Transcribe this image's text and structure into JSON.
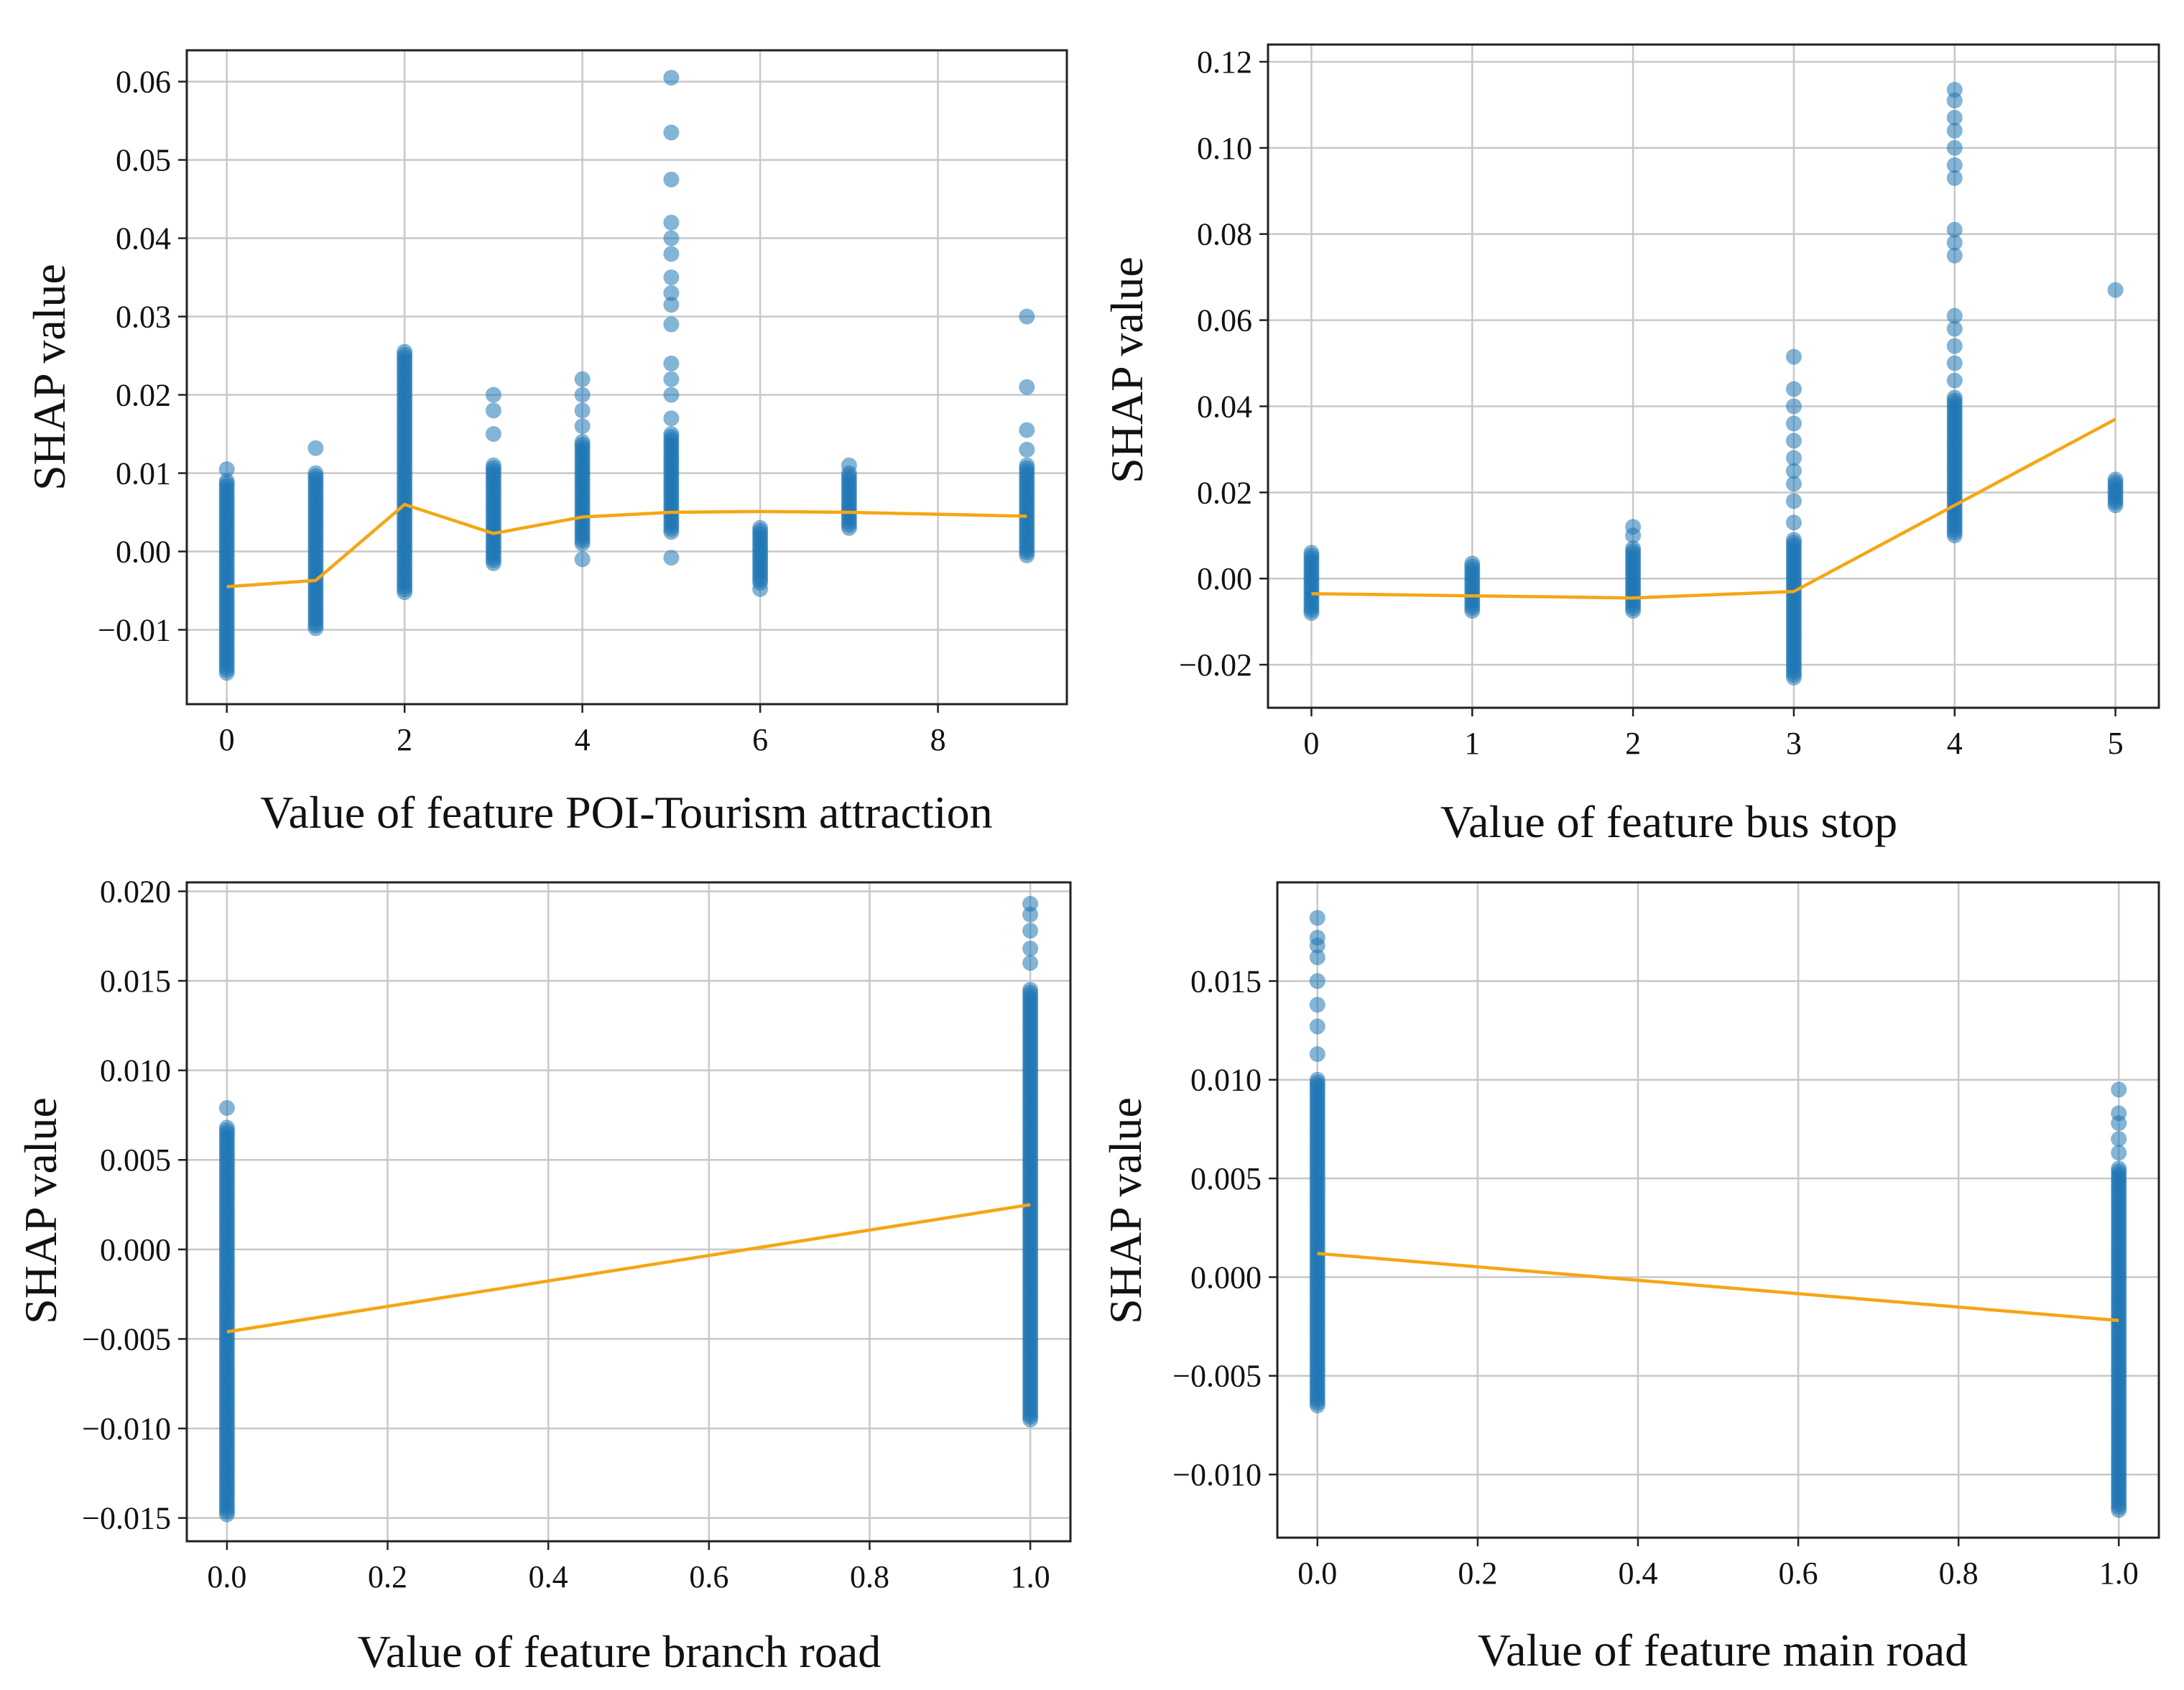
{
  "style": {
    "point_color": "#1f77b4",
    "trend_color": "#f5a614",
    "grid_color": "#c8c8c8"
  },
  "chart_data": [
    {
      "id": "poi-tourism",
      "type": "scatter",
      "title": "",
      "xlabel": "Value of feature POI-Tourism attraction",
      "ylabel": "SHAP value",
      "xlim": [
        -0.45,
        9.45
      ],
      "ylim": [
        -0.0195,
        0.064
      ],
      "xticks": [
        0,
        2,
        4,
        6,
        8
      ],
      "xtick_labels": [
        "0",
        "2",
        "4",
        "6",
        "8"
      ],
      "yticks": [
        -0.01,
        0.0,
        0.01,
        0.02,
        0.03,
        0.04,
        0.05,
        0.06
      ],
      "ytick_labels": [
        "−0.01",
        "0.00",
        "0.01",
        "0.02",
        "0.03",
        "0.04",
        "0.05",
        "0.06"
      ],
      "groups": [
        {
          "x": 0,
          "range": [
            -0.0155,
            0.009
          ],
          "outliers": [
            0.0105
          ]
        },
        {
          "x": 1,
          "range": [
            -0.0098,
            0.01
          ],
          "outliers": [
            0.0132
          ]
        },
        {
          "x": 2,
          "range": [
            -0.0052,
            0.0255
          ],
          "outliers": []
        },
        {
          "x": 3,
          "range": [
            -0.0015,
            0.011
          ],
          "outliers": [
            0.015,
            0.018,
            0.02
          ]
        },
        {
          "x": 4,
          "range": [
            0.001,
            0.014
          ],
          "outliers": [
            -0.001,
            0.016,
            0.018,
            0.02,
            0.022
          ]
        },
        {
          "x": 5,
          "range": [
            0.0025,
            0.015
          ],
          "outliers": [
            -0.0008,
            0.017,
            0.02,
            0.022,
            0.024,
            0.029,
            0.0315,
            0.033,
            0.035,
            0.038,
            0.04,
            0.042,
            0.0475,
            0.0535,
            0.0605
          ]
        },
        {
          "x": 6,
          "range": [
            -0.004,
            0.003
          ],
          "outliers": [
            -0.0048
          ]
        },
        {
          "x": 7,
          "range": [
            0.003,
            0.01
          ],
          "outliers": [
            0.011
          ]
        },
        {
          "x": 9,
          "range": [
            -0.0005,
            0.011
          ],
          "outliers": [
            0.013,
            0.0155,
            0.021,
            0.03
          ]
        }
      ],
      "trend": {
        "x": [
          0,
          1,
          2,
          3,
          4,
          5,
          6,
          7,
          9
        ],
        "y": [
          -0.0045,
          -0.0037,
          0.006,
          0.0023,
          0.0044,
          0.005,
          0.0051,
          0.005,
          0.0045
        ]
      }
    },
    {
      "id": "bus-stop",
      "type": "scatter",
      "title": "",
      "xlabel": "Value of feature bus stop",
      "ylabel": "SHAP value",
      "xlim": [
        -0.27,
        5.27
      ],
      "ylim": [
        -0.03,
        0.124
      ],
      "xticks": [
        0,
        1,
        2,
        3,
        4,
        5
      ],
      "xtick_labels": [
        "0",
        "1",
        "2",
        "3",
        "4",
        "5"
      ],
      "yticks": [
        -0.02,
        0.0,
        0.02,
        0.04,
        0.06,
        0.08,
        0.1,
        0.12
      ],
      "ytick_labels": [
        "−0.02",
        "0.00",
        "0.02",
        "0.04",
        "0.06",
        "0.08",
        "0.10",
        "0.12"
      ],
      "groups": [
        {
          "x": 0,
          "range": [
            -0.008,
            0.006
          ],
          "outliers": []
        },
        {
          "x": 1,
          "range": [
            -0.0075,
            0.0035
          ],
          "outliers": []
        },
        {
          "x": 2,
          "range": [
            -0.0075,
            0.007
          ],
          "outliers": [
            0.01,
            0.012
          ]
        },
        {
          "x": 3,
          "range": [
            -0.023,
            0.009
          ],
          "outliers": [
            0.013,
            0.018,
            0.022,
            0.025,
            0.028,
            0.032,
            0.036,
            0.04,
            0.044,
            0.0515
          ]
        },
        {
          "x": 4,
          "range": [
            0.01,
            0.042
          ],
          "outliers": [
            0.046,
            0.05,
            0.054,
            0.058,
            0.061,
            0.075,
            0.078,
            0.081,
            0.093,
            0.096,
            0.1,
            0.104,
            0.107,
            0.111,
            0.1135
          ]
        },
        {
          "x": 5,
          "range": [
            0.017,
            0.023
          ],
          "outliers": [
            0.067
          ]
        }
      ],
      "trend": {
        "x": [
          0,
          1,
          2,
          3,
          4,
          5
        ],
        "y": [
          -0.0035,
          -0.004,
          -0.0045,
          -0.003,
          0.017,
          0.037
        ]
      }
    },
    {
      "id": "branch-road",
      "type": "scatter",
      "title": "",
      "xlabel": "Value of feature branch road",
      "ylabel": "SHAP value",
      "xlim": [
        -0.05,
        1.05
      ],
      "ylim": [
        -0.0163,
        0.0205
      ],
      "xticks": [
        0.0,
        0.2,
        0.4,
        0.6,
        0.8,
        1.0
      ],
      "xtick_labels": [
        "0.0",
        "0.2",
        "0.4",
        "0.6",
        "0.8",
        "1.0"
      ],
      "yticks": [
        -0.015,
        -0.01,
        -0.005,
        0.0,
        0.005,
        0.01,
        0.015,
        0.02
      ],
      "ytick_labels": [
        "−0.015",
        "−0.010",
        "−0.005",
        "0.000",
        "0.005",
        "0.010",
        "0.015",
        "0.020"
      ],
      "groups": [
        {
          "x": 0,
          "range": [
            -0.0148,
            0.0068
          ],
          "outliers": [
            0.0079
          ]
        },
        {
          "x": 1,
          "range": [
            -0.0095,
            0.0145
          ],
          "outliers": [
            0.016,
            0.0168,
            0.0178,
            0.0187,
            0.0193
          ]
        }
      ],
      "trend": {
        "x": [
          0,
          1
        ],
        "y": [
          -0.0046,
          0.0025
        ]
      }
    },
    {
      "id": "main-road",
      "type": "scatter",
      "title": "",
      "xlabel": "Value of feature main road",
      "ylabel": "SHAP value",
      "xlim": [
        -0.05,
        1.05
      ],
      "ylim": [
        -0.0132,
        0.02
      ],
      "xticks": [
        0.0,
        0.2,
        0.4,
        0.6,
        0.8,
        1.0
      ],
      "xtick_labels": [
        "0.0",
        "0.2",
        "0.4",
        "0.6",
        "0.8",
        "1.0"
      ],
      "yticks": [
        -0.01,
        -0.005,
        0.0,
        0.005,
        0.01,
        0.015
      ],
      "ytick_labels": [
        "−0.010",
        "−0.005",
        "0.000",
        "0.005",
        "0.010",
        "0.015"
      ],
      "groups": [
        {
          "x": 0,
          "range": [
            -0.0065,
            0.01
          ],
          "outliers": [
            0.0113,
            0.0127,
            0.0138,
            0.015,
            0.0162,
            0.0168,
            0.0172,
            0.0182
          ]
        },
        {
          "x": 1,
          "range": [
            -0.0118,
            0.0055
          ],
          "outliers": [
            0.0063,
            0.007,
            0.0078,
            0.0083,
            0.0095
          ]
        }
      ],
      "trend": {
        "x": [
          0,
          1
        ],
        "y": [
          0.0012,
          -0.0022
        ]
      }
    }
  ]
}
